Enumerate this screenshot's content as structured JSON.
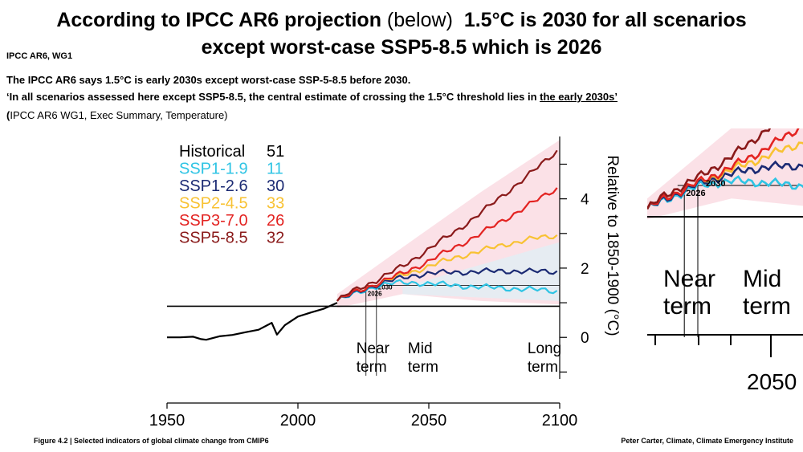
{
  "header": {
    "title_bold": "According to IPCC AR6 projection",
    "title_paren": "(below)",
    "title_bold2": "1.5°C is 2030 for all scenarios",
    "title_line2": "except worst-case SSP5-8.5 which is 2026",
    "tag": "IPCC AR6, WG1"
  },
  "body": {
    "line1": "The IPCC AR6 says 1.5°C is early 2030s except worst-case SSP-5-8.5  before 2030.",
    "line2_pre": "‘In all scenarios assessed here except SSP5-8.5, the central estimate of crossing the 1.5°C threshold lies in ",
    "line2_link": "the early 2030s’",
    "line3_pre": "(",
    "line3_post": "IPCC AR6 WG1, Exec Summary, Temperature)"
  },
  "footer": {
    "figure_caption": "Figure 4.2 | Selected indicators of global climate change from CMIP6",
    "credit": "Peter Carter, Climate, Climate Emergency Institute"
  },
  "colors": {
    "historical": "#000000",
    "ssp119": "#2fc4e4",
    "ssp126": "#1b2a73",
    "ssp245": "#f8c233",
    "ssp370": "#e32422",
    "ssp585": "#8a1a1a",
    "band_pink": "#f7c9d3",
    "band_cyan": "#d8f3fa"
  },
  "chart_data": {
    "type": "line",
    "title": "Selected indicators of global climate change from CMIP6",
    "ylabel": "Relative to 1850-1900 (°C)",
    "xlim": [
      1950,
      2100
    ],
    "ylim": [
      -1.2,
      5.8
    ],
    "x_ticks": [
      "1950",
      "2000",
      "2050",
      "2100"
    ],
    "y_ticks": [
      "0",
      "2",
      "4"
    ],
    "reference_line_y": 0.9,
    "threshold_line_y": 1.5,
    "period_labels": [
      {
        "line1": "Near",
        "line2": "term"
      },
      {
        "line1": "Mid",
        "line2": "term"
      },
      {
        "line1": "Long",
        "line2": "term"
      }
    ],
    "annotations": [
      {
        "label": "2026",
        "x": 2026
      },
      {
        "label": "2030",
        "x": 2030
      }
    ],
    "legend": [
      {
        "name": "Historical",
        "models": "51",
        "color_key": "historical"
      },
      {
        "name": "SSP1-1.9",
        "models": "11",
        "color_key": "ssp119"
      },
      {
        "name": "SSP1-2.6",
        "models": "30",
        "color_key": "ssp126"
      },
      {
        "name": "SSP2-4.5",
        "models": "33",
        "color_key": "ssp245"
      },
      {
        "name": "SSP3-7.0",
        "models": "26",
        "color_key": "ssp370"
      },
      {
        "name": "SSP5-8.5",
        "models": "32",
        "color_key": "ssp585"
      }
    ],
    "series": [
      {
        "name": "Historical",
        "color_key": "historical",
        "x": [
          1950,
          1955,
          1960,
          1963,
          1965,
          1970,
          1975,
          1980,
          1985,
          1990,
          1992,
          1995,
          2000,
          2005,
          2010,
          2015
        ],
        "y": [
          0.0,
          0.0,
          0.02,
          -0.05,
          -0.07,
          0.03,
          0.07,
          0.15,
          0.22,
          0.42,
          0.08,
          0.35,
          0.6,
          0.72,
          0.83,
          1.0
        ]
      },
      {
        "name": "SSP1-1.9",
        "color_key": "ssp119",
        "x": [
          2015,
          2020,
          2025,
          2030,
          2035,
          2040,
          2045,
          2050,
          2060,
          2070,
          2080,
          2090,
          2100
        ],
        "y": [
          1.05,
          1.2,
          1.35,
          1.48,
          1.55,
          1.58,
          1.58,
          1.55,
          1.5,
          1.45,
          1.42,
          1.38,
          1.33
        ]
      },
      {
        "name": "SSP1-2.6",
        "color_key": "ssp126",
        "x": [
          2015,
          2020,
          2025,
          2030,
          2035,
          2040,
          2045,
          2050,
          2060,
          2070,
          2080,
          2090,
          2100
        ],
        "y": [
          1.05,
          1.22,
          1.38,
          1.52,
          1.63,
          1.72,
          1.8,
          1.85,
          1.88,
          1.9,
          1.92,
          1.9,
          1.9
        ]
      },
      {
        "name": "SSP2-4.5",
        "color_key": "ssp245",
        "x": [
          2015,
          2020,
          2030,
          2040,
          2050,
          2060,
          2070,
          2080,
          2090,
          2100
        ],
        "y": [
          1.05,
          1.25,
          1.55,
          1.8,
          2.05,
          2.3,
          2.5,
          2.7,
          2.85,
          2.95
        ]
      },
      {
        "name": "SSP3-7.0",
        "color_key": "ssp370",
        "x": [
          2015,
          2020,
          2030,
          2040,
          2050,
          2060,
          2070,
          2080,
          2090,
          2100
        ],
        "y": [
          1.05,
          1.25,
          1.55,
          1.85,
          2.2,
          2.6,
          3.0,
          3.45,
          3.9,
          4.35
        ]
      },
      {
        "name": "SSP5-8.5",
        "color_key": "ssp585",
        "x": [
          2015,
          2020,
          2030,
          2040,
          2050,
          2060,
          2070,
          2080,
          2090,
          2100
        ],
        "y": [
          1.05,
          1.3,
          1.65,
          2.05,
          2.55,
          3.05,
          3.6,
          4.2,
          4.8,
          5.45
        ]
      }
    ]
  },
  "inset": {
    "labels": {
      "a2026": "2026",
      "a2030": "2030",
      "near": "Near",
      "term1": "term",
      "mid": "Mid",
      "term2": "term",
      "year": "2050"
    }
  }
}
